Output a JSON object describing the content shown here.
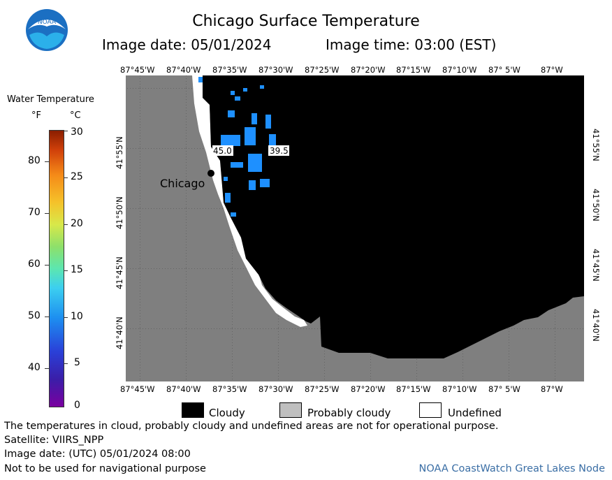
{
  "title": "Chicago Surface Temperature",
  "image_date_label": "Image date: 05/01/2024",
  "image_time_label": "Image time: 03:00 (EST)",
  "logo": {
    "text": "NOAA",
    "icon": "noaa-logo-icon"
  },
  "legend": {
    "title": "Water Temperature",
    "unit_f": "°F",
    "unit_c": "°C",
    "f_ticks": [
      "80",
      "70",
      "60",
      "50",
      "40"
    ],
    "c_ticks": [
      "30",
      "25",
      "20",
      "15",
      "10",
      "5",
      "0"
    ]
  },
  "map": {
    "lon_labels": [
      "87°45'W",
      "87°40'W",
      "87°35'W",
      "87°30'W",
      "87°25'W",
      "87°20'W",
      "87°15'W",
      "87°10'W",
      "87° 5'W",
      "87°W"
    ],
    "lat_labels": [
      "41°55'N",
      "41°50'N",
      "41°45'N",
      "41°40'N"
    ],
    "city_label": "Chicago",
    "temp_labels": [
      "45.0",
      "39.5"
    ],
    "colors": {
      "land": "#7f7f7f",
      "cloudy": "#000000",
      "undefined": "#ffffff",
      "water_cold": "#1e90ff"
    }
  },
  "key": {
    "cloudy": "Cloudy",
    "probably_cloudy": "Probably cloudy",
    "undefined": "Undefined"
  },
  "footer": {
    "disclaimer": "The temperatures in cloud, probably cloudy and undefined areas are not for operational purpose.",
    "satellite": "Satellite: VIIRS_NPP",
    "utc_date": "Image date: (UTC) 05/01/2024  08:00",
    "navigation": "Not to be used for navigational purpose",
    "credit": "NOAA CoastWatch Great Lakes Node"
  }
}
